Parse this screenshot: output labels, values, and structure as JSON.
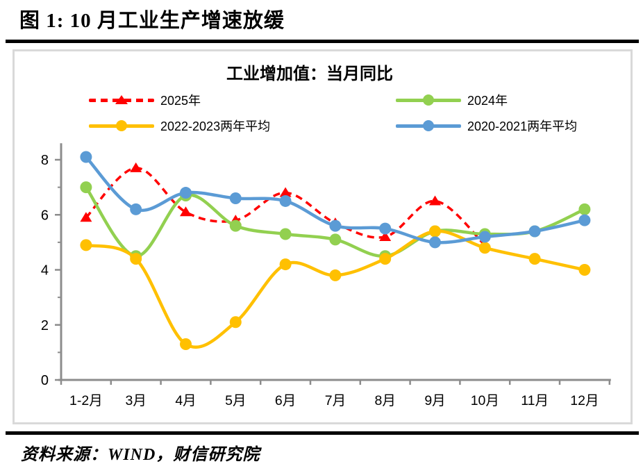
{
  "header": {
    "title": "图 1:  10 月工业生产增速放缓"
  },
  "chart": {
    "title": "工业增加值：当月同比",
    "chart_data": {
      "type": "line",
      "categories": [
        "1-2月",
        "3月",
        "4月",
        "5月",
        "6月",
        "7月",
        "8月",
        "9月",
        "10月",
        "11月",
        "12月"
      ],
      "series": [
        {
          "key": "2025",
          "name": "2025年",
          "color": "#FF0000",
          "style": "dashed",
          "marker": "triangle",
          "values": [
            5.9,
            7.7,
            6.1,
            5.8,
            6.8,
            5.7,
            5.2,
            6.5,
            4.9,
            null,
            null
          ]
        },
        {
          "key": "2024",
          "name": "2024年",
          "color": "#92D050",
          "style": "solid",
          "marker": "circle",
          "values": [
            7.0,
            4.5,
            6.7,
            5.6,
            5.3,
            5.1,
            4.5,
            5.4,
            5.3,
            5.4,
            6.2
          ]
        },
        {
          "key": "2022-2023-avg",
          "name": "2022-2023两年平均",
          "color": "#FFC000",
          "style": "solid",
          "marker": "circle",
          "values": [
            4.9,
            4.4,
            1.3,
            2.1,
            4.2,
            3.8,
            4.4,
            5.4,
            4.8,
            4.4,
            4.0
          ]
        },
        {
          "key": "2020-2021-avg",
          "name": "2020-2021两年平均",
          "color": "#5B9BD5",
          "style": "solid",
          "marker": "circle",
          "values": [
            8.1,
            6.2,
            6.8,
            6.6,
            6.5,
            5.6,
            5.5,
            5.0,
            5.2,
            5.4,
            5.8
          ]
        }
      ],
      "ylim": [
        0,
        8
      ],
      "yticks_major": [
        0,
        2,
        4,
        6,
        8
      ],
      "yticks_minor": [
        1,
        3,
        5,
        7
      ],
      "grid": "off",
      "legend_position": "top",
      "axis_color": "#8C8C8C"
    }
  },
  "footer": {
    "source": "资料来源：WIND，财信研究院"
  }
}
